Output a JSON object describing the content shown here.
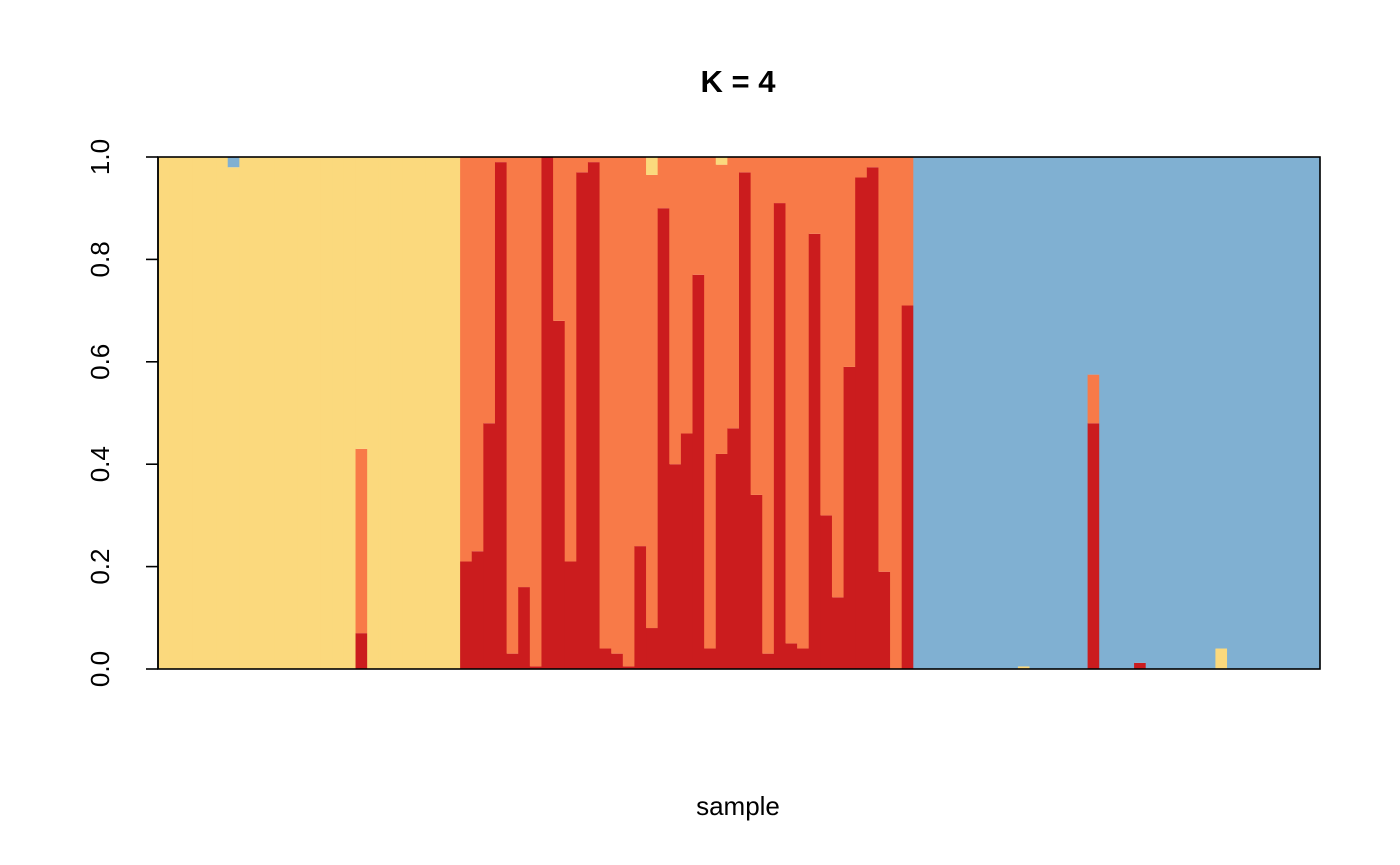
{
  "chart_data": {
    "type": "bar",
    "stacked": true,
    "title": "K = 4",
    "xlabel": "sample",
    "ylabel": "",
    "ylim": [
      0,
      1
    ],
    "yticks": [
      "0.0",
      "0.2",
      "0.4",
      "0.6",
      "0.8",
      "1.0"
    ],
    "grid": false,
    "legend": "none",
    "colors": {
      "cluster_red": "#CB1C1E",
      "cluster_orange": "#F87A48",
      "cluster_yellow": "#FBD97D",
      "cluster_blue": "#80B0D2"
    },
    "series_order": [
      "red",
      "orange",
      "yellow",
      "blue"
    ],
    "samples": [
      [
        0,
        0,
        1,
        0
      ],
      [
        0,
        0,
        1,
        0
      ],
      [
        0,
        0,
        1,
        0
      ],
      [
        0,
        0,
        1,
        0
      ],
      [
        0,
        0,
        1,
        0
      ],
      [
        0,
        0,
        1,
        0
      ],
      [
        0,
        0,
        0.98,
        0.02
      ],
      [
        0,
        0,
        1,
        0
      ],
      [
        0,
        0,
        1,
        0
      ],
      [
        0,
        0,
        1,
        0
      ],
      [
        0,
        0,
        1,
        0
      ],
      [
        0,
        0,
        1,
        0
      ],
      [
        0,
        0,
        1,
        0
      ],
      [
        0,
        0,
        1,
        0
      ],
      [
        0,
        0,
        1,
        0
      ],
      [
        0,
        0,
        1,
        0
      ],
      [
        0,
        0,
        1,
        0
      ],
      [
        0.07,
        0.36,
        0.57,
        0
      ],
      [
        0,
        0,
        1,
        0
      ],
      [
        0,
        0,
        1,
        0
      ],
      [
        0,
        0,
        1,
        0
      ],
      [
        0,
        0,
        1,
        0
      ],
      [
        0,
        0,
        1,
        0
      ],
      [
        0,
        0,
        1,
        0
      ],
      [
        0,
        0,
        1,
        0
      ],
      [
        0,
        0,
        1,
        0
      ],
      [
        0.21,
        0.79,
        0,
        0
      ],
      [
        0.23,
        0.77,
        0,
        0
      ],
      [
        0.48,
        0.52,
        0,
        0
      ],
      [
        0.99,
        0.01,
        0,
        0
      ],
      [
        0.03,
        0.97,
        0,
        0
      ],
      [
        0.16,
        0.84,
        0,
        0
      ],
      [
        0.005,
        0.995,
        0,
        0
      ],
      [
        1.0,
        0,
        0,
        0
      ],
      [
        0.68,
        0.32,
        0,
        0
      ],
      [
        0.21,
        0.79,
        0,
        0
      ],
      [
        0.97,
        0.03,
        0,
        0
      ],
      [
        0.99,
        0.01,
        0,
        0
      ],
      [
        0.04,
        0.96,
        0,
        0
      ],
      [
        0.03,
        0.97,
        0,
        0
      ],
      [
        0.005,
        0.995,
        0,
        0
      ],
      [
        0.24,
        0.76,
        0,
        0
      ],
      [
        0.08,
        0.885,
        0.035,
        0
      ],
      [
        0.9,
        0.1,
        0,
        0
      ],
      [
        0.4,
        0.6,
        0,
        0
      ],
      [
        0.46,
        0.54,
        0,
        0
      ],
      [
        0.77,
        0.23,
        0,
        0
      ],
      [
        0.04,
        0.96,
        0,
        0
      ],
      [
        0.42,
        0.565,
        0.015,
        0
      ],
      [
        0.47,
        0.53,
        0,
        0
      ],
      [
        0.97,
        0.03,
        0,
        0
      ],
      [
        0.34,
        0.66,
        0,
        0
      ],
      [
        0.03,
        0.97,
        0,
        0
      ],
      [
        0.91,
        0.09,
        0,
        0
      ],
      [
        0.05,
        0.95,
        0,
        0
      ],
      [
        0.04,
        0.96,
        0,
        0
      ],
      [
        0.85,
        0.15,
        0,
        0
      ],
      [
        0.3,
        0.7,
        0,
        0
      ],
      [
        0.14,
        0.86,
        0,
        0
      ],
      [
        0.59,
        0.41,
        0,
        0
      ],
      [
        0.96,
        0.04,
        0,
        0
      ],
      [
        0.98,
        0.02,
        0,
        0
      ],
      [
        0.19,
        0.81,
        0,
        0
      ],
      [
        0,
        1.0,
        0,
        0
      ],
      [
        0.71,
        0.29,
        0,
        0
      ],
      [
        0,
        0,
        0,
        1
      ],
      [
        0,
        0,
        0,
        1
      ],
      [
        0,
        0,
        0,
        1
      ],
      [
        0,
        0,
        0,
        1
      ],
      [
        0,
        0,
        0,
        1
      ],
      [
        0,
        0,
        0,
        1
      ],
      [
        0,
        0,
        0,
        1
      ],
      [
        0,
        0,
        0,
        1
      ],
      [
        0,
        0,
        0,
        1
      ],
      [
        0,
        0,
        0.005,
        0.995
      ],
      [
        0,
        0,
        0,
        1
      ],
      [
        0,
        0,
        0,
        1
      ],
      [
        0,
        0,
        0,
        1
      ],
      [
        0,
        0,
        0,
        1
      ],
      [
        0,
        0,
        0,
        1
      ],
      [
        0.48,
        0.095,
        0,
        0.425
      ],
      [
        0,
        0,
        0,
        1
      ],
      [
        0,
        0,
        0,
        1
      ],
      [
        0,
        0,
        0,
        1
      ],
      [
        0.012,
        0,
        0,
        0.988
      ],
      [
        0,
        0,
        0,
        1
      ],
      [
        0,
        0,
        0,
        1
      ],
      [
        0,
        0,
        0,
        1
      ],
      [
        0,
        0,
        0,
        1
      ],
      [
        0,
        0,
        0,
        1
      ],
      [
        0,
        0,
        0,
        1
      ],
      [
        0,
        0,
        0.04,
        0.96
      ],
      [
        0,
        0,
        0,
        1
      ],
      [
        0,
        0,
        0,
        1
      ],
      [
        0,
        0,
        0,
        1
      ],
      [
        0,
        0,
        0,
        1
      ],
      [
        0,
        0,
        0,
        1
      ],
      [
        0,
        0,
        0,
        1
      ],
      [
        0,
        0,
        0,
        1
      ],
      [
        0,
        0,
        0,
        1
      ]
    ]
  }
}
